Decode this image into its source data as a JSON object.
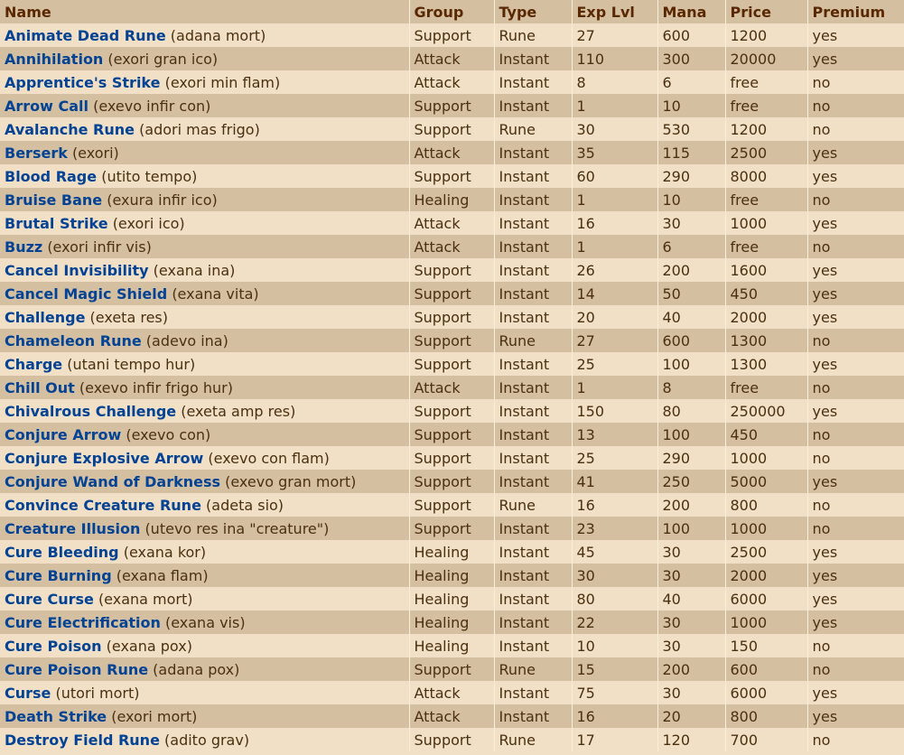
{
  "table": {
    "headers": [
      "Name",
      "Group",
      "Type",
      "Exp Lvl",
      "Mana",
      "Price",
      "Premium"
    ],
    "rows": [
      {
        "name": "Animate Dead Rune",
        "words": "(adana mort)",
        "group": "Support",
        "type": "Rune",
        "exp": "27",
        "mana": "600",
        "price": "1200",
        "premium": "yes"
      },
      {
        "name": "Annihilation",
        "words": "(exori gran ico)",
        "group": "Attack",
        "type": "Instant",
        "exp": "110",
        "mana": "300",
        "price": "20000",
        "premium": "yes"
      },
      {
        "name": "Apprentice's Strike",
        "words": "(exori min flam)",
        "group": "Attack",
        "type": "Instant",
        "exp": "8",
        "mana": "6",
        "price": "free",
        "premium": "no"
      },
      {
        "name": "Arrow Call",
        "words": "(exevo infir con)",
        "group": "Support",
        "type": "Instant",
        "exp": "1",
        "mana": "10",
        "price": "free",
        "premium": "no"
      },
      {
        "name": "Avalanche Rune",
        "words": "(adori mas frigo)",
        "group": "Support",
        "type": "Rune",
        "exp": "30",
        "mana": "530",
        "price": "1200",
        "premium": "no"
      },
      {
        "name": "Berserk",
        "words": "(exori)",
        "group": "Attack",
        "type": "Instant",
        "exp": "35",
        "mana": "115",
        "price": "2500",
        "premium": "yes"
      },
      {
        "name": "Blood Rage",
        "words": "(utito tempo)",
        "group": "Support",
        "type": "Instant",
        "exp": "60",
        "mana": "290",
        "price": "8000",
        "premium": "yes"
      },
      {
        "name": "Bruise Bane",
        "words": "(exura infir ico)",
        "group": "Healing",
        "type": "Instant",
        "exp": "1",
        "mana": "10",
        "price": "free",
        "premium": "no"
      },
      {
        "name": "Brutal Strike",
        "words": "(exori ico)",
        "group": "Attack",
        "type": "Instant",
        "exp": "16",
        "mana": "30",
        "price": "1000",
        "premium": "yes"
      },
      {
        "name": "Buzz",
        "words": "(exori infir vis)",
        "group": "Attack",
        "type": "Instant",
        "exp": "1",
        "mana": "6",
        "price": "free",
        "premium": "no"
      },
      {
        "name": "Cancel Invisibility",
        "words": "(exana ina)",
        "group": "Support",
        "type": "Instant",
        "exp": "26",
        "mana": "200",
        "price": "1600",
        "premium": "yes"
      },
      {
        "name": "Cancel Magic Shield",
        "words": "(exana vita)",
        "group": "Support",
        "type": "Instant",
        "exp": "14",
        "mana": "50",
        "price": "450",
        "premium": "yes"
      },
      {
        "name": "Challenge",
        "words": "(exeta res)",
        "group": "Support",
        "type": "Instant",
        "exp": "20",
        "mana": "40",
        "price": "2000",
        "premium": "yes"
      },
      {
        "name": "Chameleon Rune",
        "words": "(adevo ina)",
        "group": "Support",
        "type": "Rune",
        "exp": "27",
        "mana": "600",
        "price": "1300",
        "premium": "no"
      },
      {
        "name": "Charge",
        "words": "(utani tempo hur)",
        "group": "Support",
        "type": "Instant",
        "exp": "25",
        "mana": "100",
        "price": "1300",
        "premium": "yes"
      },
      {
        "name": "Chill Out",
        "words": "(exevo infir frigo hur)",
        "group": "Attack",
        "type": "Instant",
        "exp": "1",
        "mana": "8",
        "price": "free",
        "premium": "no"
      },
      {
        "name": "Chivalrous Challenge",
        "words": "(exeta amp res)",
        "group": "Support",
        "type": "Instant",
        "exp": "150",
        "mana": "80",
        "price": "250000",
        "premium": "yes"
      },
      {
        "name": "Conjure Arrow",
        "words": "(exevo con)",
        "group": "Support",
        "type": "Instant",
        "exp": "13",
        "mana": "100",
        "price": "450",
        "premium": "no"
      },
      {
        "name": "Conjure Explosive Arrow",
        "words": "(exevo con flam)",
        "group": "Support",
        "type": "Instant",
        "exp": "25",
        "mana": "290",
        "price": "1000",
        "premium": "no"
      },
      {
        "name": "Conjure Wand of Darkness",
        "words": "(exevo gran mort)",
        "group": "Support",
        "type": "Instant",
        "exp": "41",
        "mana": "250",
        "price": "5000",
        "premium": "yes"
      },
      {
        "name": "Convince Creature Rune",
        "words": "(adeta sio)",
        "group": "Support",
        "type": "Rune",
        "exp": "16",
        "mana": "200",
        "price": "800",
        "premium": "no"
      },
      {
        "name": "Creature Illusion",
        "words": "(utevo res ina \"creature\")",
        "group": "Support",
        "type": "Instant",
        "exp": "23",
        "mana": "100",
        "price": "1000",
        "premium": "no"
      },
      {
        "name": "Cure Bleeding",
        "words": "(exana kor)",
        "group": "Healing",
        "type": "Instant",
        "exp": "45",
        "mana": "30",
        "price": "2500",
        "premium": "yes"
      },
      {
        "name": "Cure Burning",
        "words": "(exana flam)",
        "group": "Healing",
        "type": "Instant",
        "exp": "30",
        "mana": "30",
        "price": "2000",
        "premium": "yes"
      },
      {
        "name": "Cure Curse",
        "words": "(exana mort)",
        "group": "Healing",
        "type": "Instant",
        "exp": "80",
        "mana": "40",
        "price": "6000",
        "premium": "yes"
      },
      {
        "name": "Cure Electrification",
        "words": "(exana vis)",
        "group": "Healing",
        "type": "Instant",
        "exp": "22",
        "mana": "30",
        "price": "1000",
        "premium": "yes"
      },
      {
        "name": "Cure Poison",
        "words": "(exana pox)",
        "group": "Healing",
        "type": "Instant",
        "exp": "10",
        "mana": "30",
        "price": "150",
        "premium": "no"
      },
      {
        "name": "Cure Poison Rune",
        "words": "(adana pox)",
        "group": "Support",
        "type": "Rune",
        "exp": "15",
        "mana": "200",
        "price": "600",
        "premium": "no"
      },
      {
        "name": "Curse",
        "words": "(utori mort)",
        "group": "Attack",
        "type": "Instant",
        "exp": "75",
        "mana": "30",
        "price": "6000",
        "premium": "yes"
      },
      {
        "name": "Death Strike",
        "words": "(exori mort)",
        "group": "Attack",
        "type": "Instant",
        "exp": "16",
        "mana": "20",
        "price": "800",
        "premium": "yes"
      },
      {
        "name": "Destroy Field Rune",
        "words": "(adito grav)",
        "group": "Support",
        "type": "Rune",
        "exp": "17",
        "mana": "120",
        "price": "700",
        "premium": "no"
      }
    ]
  }
}
